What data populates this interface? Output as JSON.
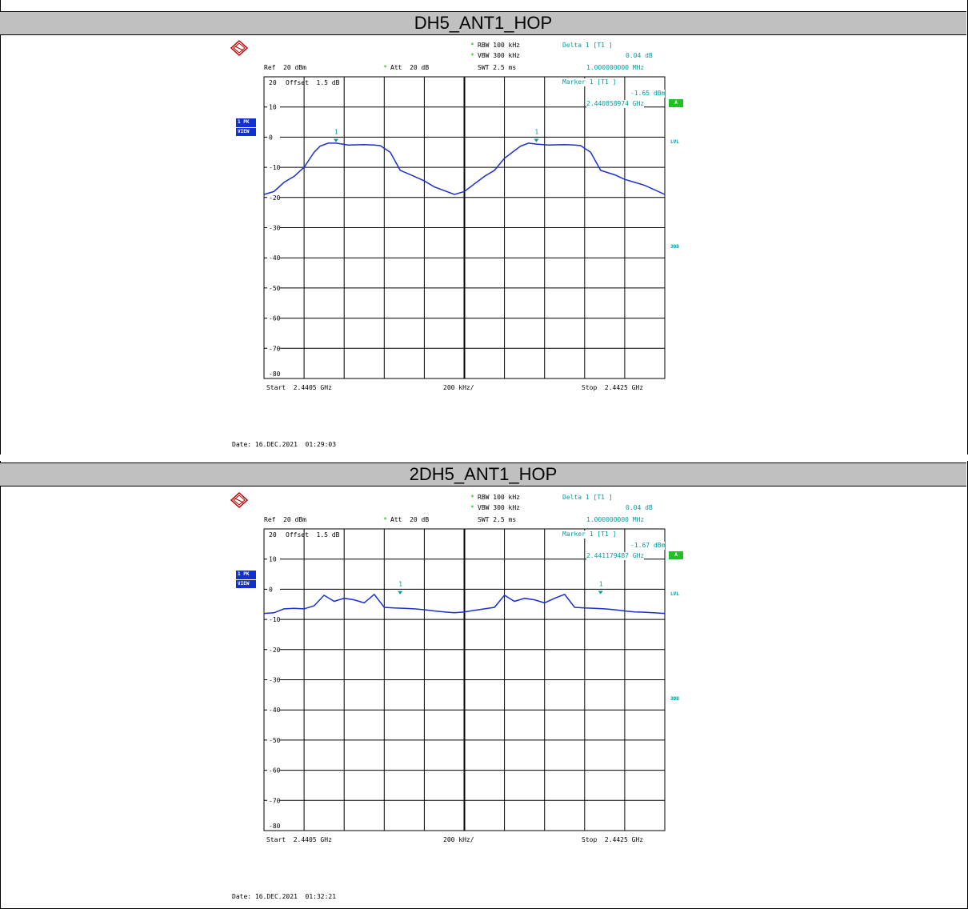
{
  "panels": [
    {
      "title": "DH5_ANT1_HOP",
      "rbw": "RBW 100 kHz",
      "vbw": "VBW 300 kHz",
      "swt": "SWT 2.5 ms",
      "ref": "Ref  20 dBm",
      "att": "Att  20 dB",
      "offset": "Offset  1.5 dB",
      "delta_label": "Delta 1 [T1 ]",
      "delta_db": "0.04 dB",
      "delta_freq": "1.000000000 MHz",
      "marker_label": "Marker 1 [T1 ]",
      "marker_dbm": "-1.65 dBm",
      "marker_freq": "2.440858974 GHz",
      "start": "Start  2.4405 GHz",
      "span_div": "200 kHz/",
      "stop": "Stop  2.4425 GHz",
      "date": "Date: 16.DEC.2021  01:29:03",
      "trace_box_top": "1 PK",
      "trace_box_bottom": "VIEW",
      "badge": "A",
      "lvl": "LVL",
      "db3": "3DB",
      "marker_num": "1"
    },
    {
      "title": "2DH5_ANT1_HOP",
      "rbw": "RBW 100 kHz",
      "vbw": "VBW 300 kHz",
      "swt": "SWT 2.5 ms",
      "ref": "Ref  20 dBm",
      "att": "Att  20 dB",
      "offset": "Offset  1.5 dB",
      "delta_label": "Delta 1 [T1 ]",
      "delta_db": "0.04 dB",
      "delta_freq": "1.000000000 MHz",
      "marker_label": "Marker 1 [T1 ]",
      "marker_dbm": "-1.67 dBm",
      "marker_freq": "2.441179487 GHz",
      "start": "Start  2.4405 GHz",
      "span_div": "200 kHz/",
      "stop": "Stop  2.4425 GHz",
      "date": "Date: 16.DEC.2021  01:32:21",
      "trace_box_top": "1 PK",
      "trace_box_bottom": "VIEW",
      "badge": "A",
      "lvl": "LVL",
      "db3": "3DB",
      "marker_num": "1"
    }
  ],
  "colors": {
    "trace": "#1a2fd0",
    "annotation": "#009c9c",
    "grid": "#000000",
    "title_bg": "#c0c0c0"
  },
  "chart_data": [
    {
      "type": "line",
      "title": "DH5_ANT1_HOP",
      "xlabel": "",
      "ylabel": "",
      "x_range_ghz": [
        2.4405,
        2.4425
      ],
      "ylim": [
        -80,
        20
      ],
      "y_ticks": [
        20,
        10,
        0,
        -10,
        -20,
        -30,
        -40,
        -50,
        -60,
        -70,
        -80
      ],
      "grid": true,
      "series": [
        {
          "x": [
            2.4405,
            2.44055,
            2.4406,
            2.44065,
            2.4407,
            2.44075,
            2.44078,
            2.44082,
            2.44086,
            2.44092,
            2.441,
            2.44105,
            2.44108,
            2.44113,
            2.44118,
            2.44125,
            2.4413,
            2.44135,
            2.44145,
            2.4415,
            2.44155,
            2.4416,
            2.44165,
            2.4417,
            2.44178,
            2.44182,
            2.44186,
            2.44192,
            2.442,
            2.44205,
            2.44208,
            2.44213,
            2.44218,
            2.44225,
            2.4423,
            2.44235,
            2.4424,
            2.4425
          ],
          "y": [
            -19,
            -18,
            -15,
            -13,
            -10,
            -5,
            -3,
            -2,
            -2,
            -2.6,
            -2.5,
            -2.6,
            -2.8,
            -5,
            -11,
            -13,
            -14.5,
            -16.5,
            -19,
            -18,
            -15.5,
            -13,
            -11,
            -7,
            -3,
            -2,
            -2.3,
            -2.6,
            -2.5,
            -2.6,
            -2.8,
            -5,
            -11,
            -12.5,
            -14,
            -15,
            -16,
            -19
          ]
        }
      ],
      "markers": [
        {
          "label": "1",
          "x": 2.440858974,
          "y": -1.65
        },
        {
          "label": "1",
          "x": 2.441858974,
          "y": -1.61
        }
      ]
    },
    {
      "type": "line",
      "title": "2DH5_ANT1_HOP",
      "xlabel": "",
      "ylabel": "",
      "x_range_ghz": [
        2.4405,
        2.4425
      ],
      "ylim": [
        -80,
        20
      ],
      "y_ticks": [
        20,
        10,
        0,
        -10,
        -20,
        -30,
        -40,
        -50,
        -60,
        -70,
        -80
      ],
      "grid": true,
      "series": [
        {
          "x": [
            2.4405,
            2.44055,
            2.4406,
            2.44065,
            2.4407,
            2.44075,
            2.4408,
            2.44085,
            2.4409,
            2.44095,
            2.441,
            2.44105,
            2.4411,
            2.44115,
            2.4412,
            2.44125,
            2.4413,
            2.44135,
            2.4414,
            2.44145,
            2.4415,
            2.44155,
            2.4416,
            2.44165,
            2.4417,
            2.44175,
            2.4418,
            2.44185,
            2.4419,
            2.44195,
            2.442,
            2.44205,
            2.4421,
            2.44215,
            2.4422,
            2.44225,
            2.4423,
            2.44235,
            2.4424,
            2.4425
          ],
          "y": [
            -8,
            -7.8,
            -6.5,
            -6.3,
            -6.5,
            -5.5,
            -2,
            -4,
            -3,
            -3.5,
            -4.5,
            -1.7,
            -6,
            -6.2,
            -6.3,
            -6.5,
            -6.8,
            -7.2,
            -7.5,
            -7.8,
            -7.5,
            -7,
            -6.5,
            -6,
            -2,
            -4,
            -3,
            -3.5,
            -4.5,
            -3,
            -1.7,
            -6,
            -6.2,
            -6.3,
            -6.5,
            -6.8,
            -7.2,
            -7.5,
            -7.6,
            -8
          ]
        }
      ],
      "markers": [
        {
          "label": "1",
          "x": 2.441179487,
          "y": -1.67
        },
        {
          "label": "1",
          "x": 2.442179487,
          "y": -1.63
        }
      ]
    }
  ]
}
